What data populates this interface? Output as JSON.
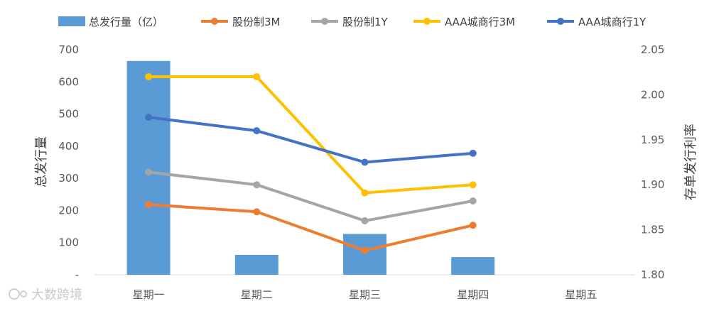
{
  "chart_data": {
    "type": "bar+line",
    "categories": [
      "星期一",
      "星期二",
      "星期三",
      "星期四",
      "星期五"
    ],
    "bar_series": {
      "name": "总发行量（亿）",
      "color": "#5b9bd5",
      "values": [
        665,
        62,
        127,
        55,
        null
      ],
      "axis": "left"
    },
    "line_series": [
      {
        "name": "股份制3M",
        "color": "#ed7d31",
        "values": [
          1.878,
          1.87,
          1.827,
          1.855,
          null
        ],
        "axis": "right"
      },
      {
        "name": "股份制1Y",
        "color": "#a5a5a5",
        "values": [
          1.914,
          1.9,
          1.86,
          1.882,
          null
        ],
        "axis": "right"
      },
      {
        "name": "AAA城商行3M",
        "color": "#ffc000",
        "values": [
          2.02,
          2.02,
          1.891,
          1.9,
          null
        ],
        "axis": "right"
      },
      {
        "name": "AAA城商行1Y",
        "color": "#4472c4",
        "values": [
          1.975,
          1.96,
          1.925,
          1.935,
          null
        ],
        "axis": "right"
      }
    ],
    "ylabel_left": "总发行量",
    "ylabel_right": "存单发行利率",
    "ylim_left": [
      0,
      700
    ],
    "yticks_left": [
      "-",
      "100",
      "200",
      "300",
      "400",
      "500",
      "600",
      "700"
    ],
    "ylim_right": [
      1.8,
      2.05
    ],
    "yticks_right": [
      "1.80",
      "1.85",
      "1.90",
      "1.95",
      "2.00",
      "2.05"
    ],
    "grid": false,
    "legend_position": "top"
  },
  "watermark": "大数跨境"
}
